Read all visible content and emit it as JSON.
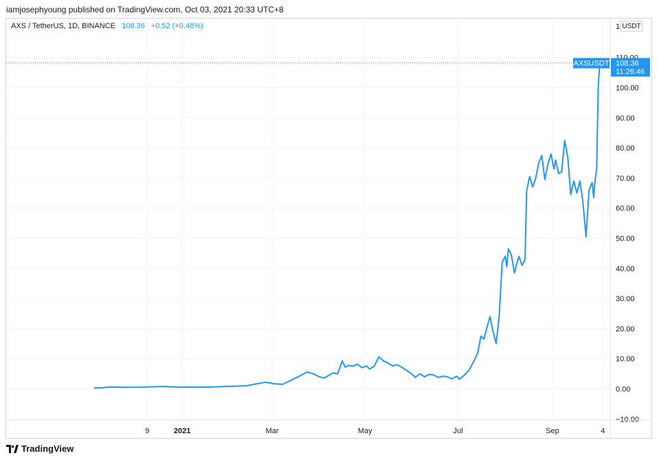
{
  "header": {
    "publisher_text": "iamjosephyoung published on TradingView.com, Oct 03, 2021 20:33 UTC+8"
  },
  "legend": {
    "symbol_text": "AXS / TetherUS, 1D, BINANCE",
    "last_value": "108.36",
    "change_text": "+0.52 (+0.48%)"
  },
  "unit_label": "USDT",
  "price_scale_top_label": "1",
  "last_price_tag": {
    "symbol": "AXSUSDT",
    "price": "108.36",
    "countdown": "11:26:46"
  },
  "footer": {
    "brand": "TradingView"
  },
  "colors": {
    "line": "#2196f3",
    "tag_bg": "#2196f3",
    "grid": "#f0f3fa",
    "axis_text": "#131722"
  },
  "chart_data": {
    "type": "line",
    "title": "AXS / TetherUS, 1D, BINANCE",
    "grid": true,
    "ylim": [
      -10,
      110
    ],
    "y_ticks": [
      -10,
      0,
      10,
      20,
      30,
      40,
      50,
      60,
      70,
      80,
      90,
      100,
      110
    ],
    "y_tick_labels": [
      "−10.00",
      "0.00",
      "10.00",
      "20.00",
      "30.00",
      "40.00",
      "50.00",
      "60.00",
      "70.00",
      "80.00",
      "90.00",
      "100.00",
      "110.00"
    ],
    "x_ticks": [
      {
        "date": "2020-12-09",
        "label": "9"
      },
      {
        "date": "2021-01-01",
        "label": "2021"
      },
      {
        "date": "2021-03-01",
        "label": "Mar"
      },
      {
        "date": "2021-05-01",
        "label": "May"
      },
      {
        "date": "2021-07-01",
        "label": "Jul"
      },
      {
        "date": "2021-09-01",
        "label": "Sep"
      },
      {
        "date": "2021-10-04",
        "label": "4"
      }
    ],
    "xlim": [
      "2020-11-01",
      "2021-10-10"
    ],
    "series": [
      {
        "points": [
          [
            "2020-11-04",
            0.3
          ],
          [
            "2020-11-10",
            0.4
          ],
          [
            "2020-11-15",
            0.6
          ],
          [
            "2020-11-25",
            0.5
          ],
          [
            "2020-12-05",
            0.55
          ],
          [
            "2020-12-15",
            0.7
          ],
          [
            "2020-12-20",
            0.8
          ],
          [
            "2020-12-28",
            0.6
          ],
          [
            "2021-01-10",
            0.55
          ],
          [
            "2021-01-20",
            0.6
          ],
          [
            "2021-01-30",
            0.8
          ],
          [
            "2021-02-05",
            0.9
          ],
          [
            "2021-02-12",
            1.0
          ],
          [
            "2021-02-18",
            1.6
          ],
          [
            "2021-02-25",
            2.2
          ],
          [
            "2021-03-02",
            1.7
          ],
          [
            "2021-03-08",
            1.5
          ],
          [
            "2021-03-12",
            2.5
          ],
          [
            "2021-03-16",
            3.5
          ],
          [
            "2021-03-20",
            4.5
          ],
          [
            "2021-03-24",
            5.6
          ],
          [
            "2021-03-28",
            5.0
          ],
          [
            "2021-04-01",
            4.0
          ],
          [
            "2021-04-04",
            3.6
          ],
          [
            "2021-04-07",
            4.4
          ],
          [
            "2021-04-10",
            5.3
          ],
          [
            "2021-04-13",
            5.0
          ],
          [
            "2021-04-16",
            9.3
          ],
          [
            "2021-04-18",
            7.2
          ],
          [
            "2021-04-20",
            7.8
          ],
          [
            "2021-04-23",
            7.5
          ],
          [
            "2021-04-26",
            8.2
          ],
          [
            "2021-04-29",
            7.0
          ],
          [
            "2021-05-02",
            7.6
          ],
          [
            "2021-05-04",
            6.6
          ],
          [
            "2021-05-07",
            7.5
          ],
          [
            "2021-05-10",
            10.6
          ],
          [
            "2021-05-13",
            9.3
          ],
          [
            "2021-05-16",
            8.6
          ],
          [
            "2021-05-19",
            7.6
          ],
          [
            "2021-05-22",
            8.0
          ],
          [
            "2021-05-25",
            7.2
          ],
          [
            "2021-05-28",
            6.2
          ],
          [
            "2021-05-31",
            5.2
          ],
          [
            "2021-06-03",
            3.8
          ],
          [
            "2021-06-06",
            5.0
          ],
          [
            "2021-06-09",
            4.0
          ],
          [
            "2021-06-12",
            4.8
          ],
          [
            "2021-06-15",
            4.6
          ],
          [
            "2021-06-18",
            3.8
          ],
          [
            "2021-06-21",
            4.2
          ],
          [
            "2021-06-24",
            4.0
          ],
          [
            "2021-06-27",
            3.3
          ],
          [
            "2021-06-30",
            4.2
          ],
          [
            "2021-07-02",
            3.2
          ],
          [
            "2021-07-05",
            4.5
          ],
          [
            "2021-07-08",
            6.0
          ],
          [
            "2021-07-11",
            8.8
          ],
          [
            "2021-07-14",
            12.0
          ],
          [
            "2021-07-16",
            17.5
          ],
          [
            "2021-07-18",
            16.5
          ],
          [
            "2021-07-20",
            20.5
          ],
          [
            "2021-07-22",
            24.0
          ],
          [
            "2021-07-24",
            19.0
          ],
          [
            "2021-07-26",
            15.0
          ],
          [
            "2021-07-28",
            24.0
          ],
          [
            "2021-07-30",
            42.0
          ],
          [
            "2021-08-01",
            44.0
          ],
          [
            "2021-08-02",
            40.5
          ],
          [
            "2021-08-03",
            46.5
          ],
          [
            "2021-08-05",
            44.5
          ],
          [
            "2021-08-07",
            38.5
          ],
          [
            "2021-08-08",
            40.5
          ],
          [
            "2021-08-10",
            44.0
          ],
          [
            "2021-08-12",
            41.0
          ],
          [
            "2021-08-14",
            43.0
          ],
          [
            "2021-08-15",
            65.5
          ],
          [
            "2021-08-17",
            70.5
          ],
          [
            "2021-08-19",
            67.0
          ],
          [
            "2021-08-21",
            70.0
          ],
          [
            "2021-08-23",
            75.0
          ],
          [
            "2021-08-25",
            77.5
          ],
          [
            "2021-08-27",
            69.5
          ],
          [
            "2021-08-29",
            74.5
          ],
          [
            "2021-08-31",
            78.0
          ],
          [
            "2021-09-02",
            73.0
          ],
          [
            "2021-09-03",
            76.0
          ],
          [
            "2021-09-05",
            71.5
          ],
          [
            "2021-09-07",
            72.0
          ],
          [
            "2021-09-09",
            82.5
          ],
          [
            "2021-09-11",
            77.0
          ],
          [
            "2021-09-13",
            64.5
          ],
          [
            "2021-09-15",
            69.0
          ],
          [
            "2021-09-17",
            65.0
          ],
          [
            "2021-09-19",
            69.0
          ],
          [
            "2021-09-21",
            62.0
          ],
          [
            "2021-09-23",
            50.5
          ],
          [
            "2021-09-25",
            66.0
          ],
          [
            "2021-09-27",
            68.5
          ],
          [
            "2021-09-28",
            63.5
          ],
          [
            "2021-09-29",
            69.5
          ],
          [
            "2021-09-30",
            73.0
          ],
          [
            "2021-10-01",
            100.0
          ],
          [
            "2021-10-02",
            108.0
          ],
          [
            "2021-10-03",
            108.36
          ]
        ]
      }
    ]
  }
}
